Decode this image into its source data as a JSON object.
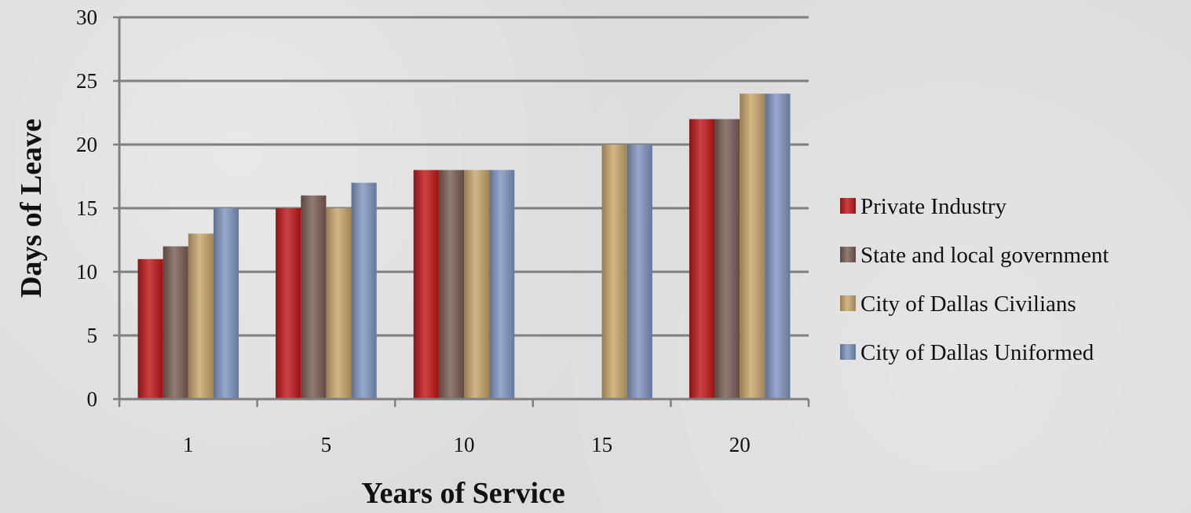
{
  "chart_data": {
    "type": "bar",
    "categories": [
      "1",
      "5",
      "10",
      "15",
      "20"
    ],
    "series": [
      {
        "name": "Private Industry",
        "color": "#c01818",
        "values": [
          11,
          15,
          18,
          0,
          22
        ]
      },
      {
        "name": "State and local government",
        "color": "#7a5e55",
        "values": [
          12,
          16,
          18,
          0,
          22
        ]
      },
      {
        "name": "City of Dallas Civilians",
        "color": "#c9a66b",
        "values": [
          13,
          15,
          18,
          20,
          24
        ]
      },
      {
        "name": "City of Dallas Uniformed",
        "color": "#7f96c1",
        "values": [
          15,
          17,
          18,
          20,
          24
        ]
      }
    ],
    "xlabel": "Years of Service",
    "ylabel": "Days of Leave",
    "ylim": [
      0,
      30
    ],
    "yticks": [
      0,
      5,
      10,
      15,
      20,
      25,
      30
    ],
    "grid": true,
    "legend_position": "right"
  }
}
